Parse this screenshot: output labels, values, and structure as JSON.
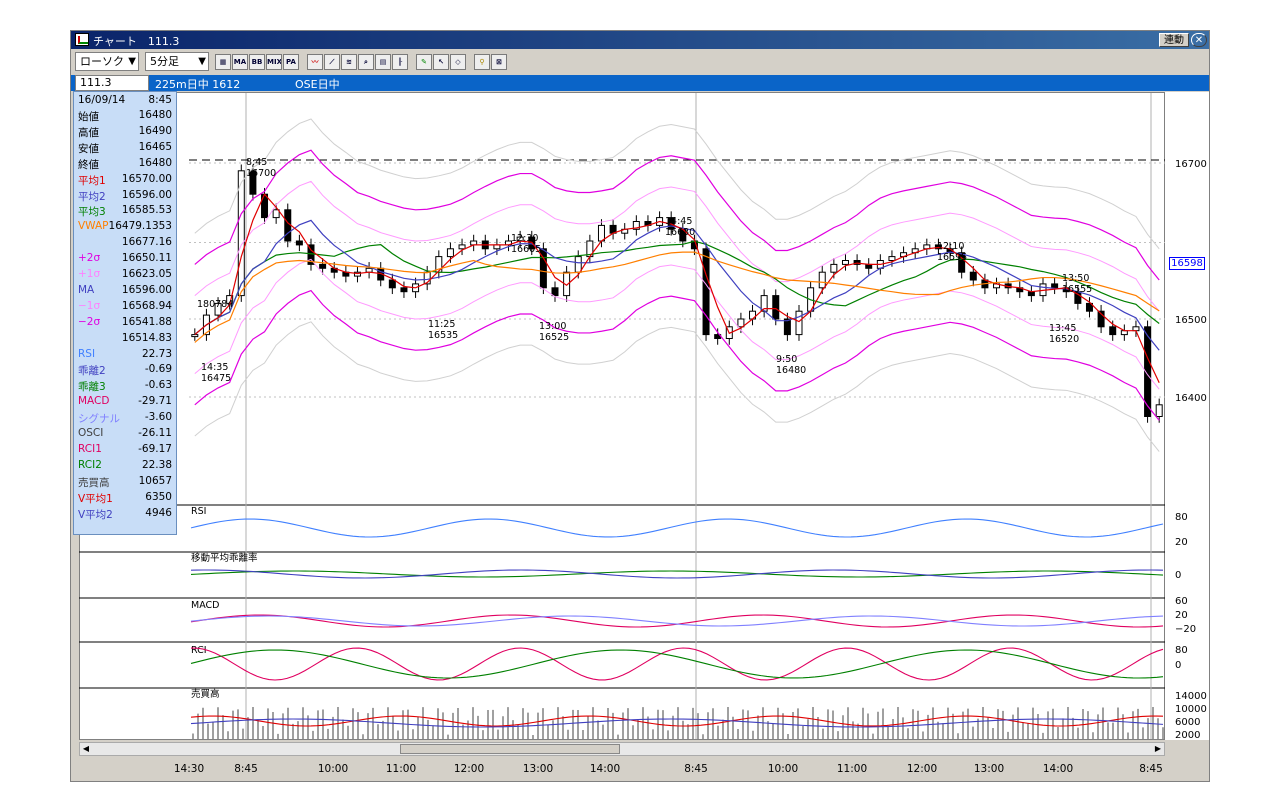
{
  "window": {
    "title": "チャート　111.3",
    "link_button": "連動",
    "close_icon": "close-icon"
  },
  "toolbar": {
    "chart_type": "ローソク",
    "interval": "5分足",
    "icons": [
      "chart-settings-icon",
      "ma-icon",
      "bb-icon",
      "mix-icon",
      "pa-icon",
      "line-tool-icon",
      "trend-tool-icon",
      "fibonacci-icon",
      "zoom-icon",
      "calc-icon",
      "bars-icon",
      "pen-icon",
      "cursor-icon",
      "eraser-icon",
      "search-icon",
      "reset-icon"
    ],
    "ma_label": "MA",
    "bb_label": "BB",
    "mix_label": "MIX",
    "pa_label": "PA"
  },
  "infobar": {
    "code": "111.3",
    "contract": "225m日中 1612",
    "session": "OSE日中"
  },
  "readout": {
    "date": "16/09/14",
    "time": "8:45",
    "rows": [
      {
        "k": "始値",
        "v": "16480",
        "c": "#000000"
      },
      {
        "k": "高値",
        "v": "16490",
        "c": "#000000"
      },
      {
        "k": "安値",
        "v": "16465",
        "c": "#000000"
      },
      {
        "k": "終値",
        "v": "16480",
        "c": "#000000"
      },
      {
        "k": "平均1",
        "v": "16570.00",
        "c": "#e00000"
      },
      {
        "k": "平均2",
        "v": "16596.00",
        "c": "#4040c0"
      },
      {
        "k": "平均3",
        "v": "16585.53",
        "c": "#008000"
      },
      {
        "k": "VWAP",
        "v": "16479.1353",
        "c": "#ff7f00"
      },
      {
        "k": "",
        "v": "16677.16",
        "c": "#000000"
      },
      {
        "k": "+2σ",
        "v": "16650.11",
        "c": "#e000e0"
      },
      {
        "k": "+1σ",
        "v": "16623.05",
        "c": "#ff80ff"
      },
      {
        "k": "MA",
        "v": "16596.00",
        "c": "#4040c0"
      },
      {
        "k": "−1σ",
        "v": "16568.94",
        "c": "#ff80ff"
      },
      {
        "k": "−2σ",
        "v": "16541.88",
        "c": "#e000e0"
      },
      {
        "k": "",
        "v": "16514.83",
        "c": "#000000"
      },
      {
        "k": "RSI",
        "v": "22.73",
        "c": "#4080ff"
      },
      {
        "k": "乖離2",
        "v": "-0.69",
        "c": "#4040c0"
      },
      {
        "k": "乖離3",
        "v": "-0.63",
        "c": "#008000"
      },
      {
        "k": "MACD",
        "v": "-29.71",
        "c": "#e00060"
      },
      {
        "k": "シグナル",
        "v": "-3.60",
        "c": "#8080ff"
      },
      {
        "k": "OSCI",
        "v": "-26.11",
        "c": "#404040"
      },
      {
        "k": "RCI1",
        "v": "-69.17",
        "c": "#e00060"
      },
      {
        "k": "RCI2",
        "v": "22.38",
        "c": "#008000"
      },
      {
        "k": "売買高",
        "v": "10657",
        "c": "#404040"
      },
      {
        "k": "V平均1",
        "v": "6350",
        "c": "#e00000"
      },
      {
        "k": "V平均2",
        "v": "4946",
        "c": "#4040c0"
      }
    ]
  },
  "chart_data": {
    "type": "candlestick",
    "price_ticks": [
      "16700",
      "16598",
      "16500",
      "16400"
    ],
    "current_price": "16598",
    "annotations": [
      {
        "time": "8:45",
        "price": "16700"
      },
      {
        "time": "14:35",
        "price": "16475"
      },
      {
        "time": "180784",
        "price": ""
      },
      {
        "time": "11:25",
        "price": "16535"
      },
      {
        "time": "12:30",
        "price": "16605"
      },
      {
        "time": "13:00",
        "price": "16525"
      },
      {
        "time": "14:45",
        "price": "16630"
      },
      {
        "time": "9:50",
        "price": "16480"
      },
      {
        "time": "12:10",
        "price": "16595"
      },
      {
        "time": "13:50",
        "price": "16555"
      },
      {
        "time": "13:45",
        "price": "16520"
      }
    ],
    "closes": [
      16480,
      16505,
      16520,
      16530,
      16690,
      16660,
      16630,
      16640,
      16600,
      16595,
      16570,
      16565,
      16560,
      16555,
      16560,
      16565,
      16550,
      16540,
      16535,
      16545,
      16560,
      16580,
      16590,
      16595,
      16600,
      16590,
      16595,
      16600,
      16605,
      16590,
      16540,
      16530,
      16560,
      16580,
      16600,
      16620,
      16610,
      16615,
      16625,
      16620,
      16630,
      16615,
      16600,
      16590,
      16480,
      16475,
      16490,
      16500,
      16510,
      16530,
      16500,
      16480,
      16510,
      16540,
      16560,
      16570,
      16575,
      16570,
      16565,
      16575,
      16580,
      16585,
      16590,
      16595,
      16590,
      16585,
      16560,
      16550,
      16540,
      16545,
      16540,
      16535,
      16530,
      16545,
      16540,
      16535,
      16520,
      16510,
      16490,
      16480,
      16485,
      16490,
      16375,
      16390
    ],
    "subcharts": [
      {
        "name": "RSI",
        "ticks": [
          "80",
          "20"
        ]
      },
      {
        "name": "移動平均乖離率",
        "ticks": [
          "0"
        ]
      },
      {
        "name": "MACD",
        "ticks": [
          "60",
          "20",
          "−20"
        ]
      },
      {
        "name": "RCI",
        "ticks": [
          "80",
          "0"
        ]
      },
      {
        "name": "売買高",
        "ticks": [
          "14000",
          "10000",
          "6000",
          "2000"
        ]
      }
    ],
    "x_ticks": [
      "14:30",
      "8:45",
      "10:00",
      "11:00",
      "12:00",
      "13:00",
      "14:00",
      "8:45",
      "10:00",
      "11:00",
      "12:00",
      "13:00",
      "14:00",
      "8:45"
    ]
  }
}
